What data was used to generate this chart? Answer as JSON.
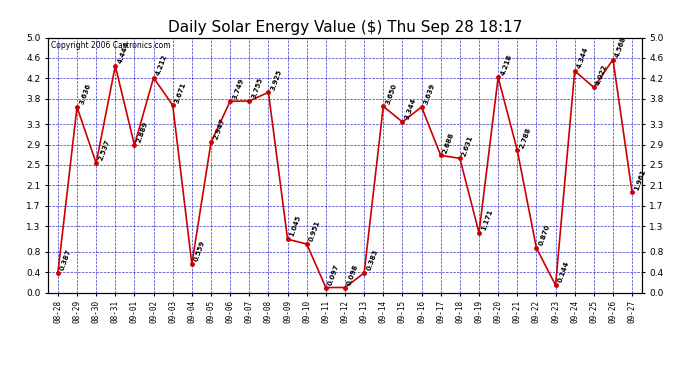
{
  "title": "Daily Solar Energy Value ($) Thu Sep 28 18:17",
  "copyright": "Copyright 2006 Cartronics.com",
  "x_labels": [
    "08-28",
    "08-29",
    "08-30",
    "08-31",
    "09-01",
    "09-02",
    "09-03",
    "09-04",
    "09-05",
    "09-06",
    "09-07",
    "09-08",
    "09-09",
    "09-10",
    "09-11",
    "09-12",
    "09-13",
    "09-14",
    "09-15",
    "09-16",
    "09-17",
    "09-18",
    "09-19",
    "09-20",
    "09-21",
    "09-22",
    "09-23",
    "09-24",
    "09-25",
    "09-26",
    "09-27"
  ],
  "y_values": [
    0.387,
    3.636,
    2.537,
    4.444,
    2.889,
    4.212,
    3.671,
    0.559,
    2.947,
    3.749,
    3.755,
    3.925,
    1.045,
    0.951,
    0.097,
    0.098,
    0.383,
    3.65,
    3.344,
    3.639,
    2.688,
    2.631,
    1.171,
    4.218,
    2.788,
    0.87,
    0.144,
    4.344,
    4.022,
    4.568,
    1.961
  ],
  "point_labels": [
    "0.387",
    "3.636",
    "2.537",
    "4.444",
    "2.889",
    "4.212",
    "3.671",
    "0.559",
    "2.947",
    "3.749",
    "3.755",
    "3.925",
    "1.045",
    "0.951",
    "0.097",
    "0.098",
    "0.383",
    "3.650",
    "3.344",
    "3.639",
    "2.688",
    "2.631",
    "1.171",
    "4.218",
    "2.788",
    "0.870",
    "0.144",
    "4.344",
    "4.022",
    "4.568",
    "1.961"
  ],
  "line_color": "#cc0000",
  "marker_color": "#cc0000",
  "bg_color": "#ffffff",
  "grid_color": "#0000bb",
  "title_fontsize": 11,
  "ylim": [
    0.0,
    5.0
  ],
  "yticks": [
    0.0,
    0.4,
    0.8,
    1.3,
    1.7,
    2.1,
    2.5,
    2.9,
    3.3,
    3.8,
    4.2,
    4.6,
    5.0
  ]
}
